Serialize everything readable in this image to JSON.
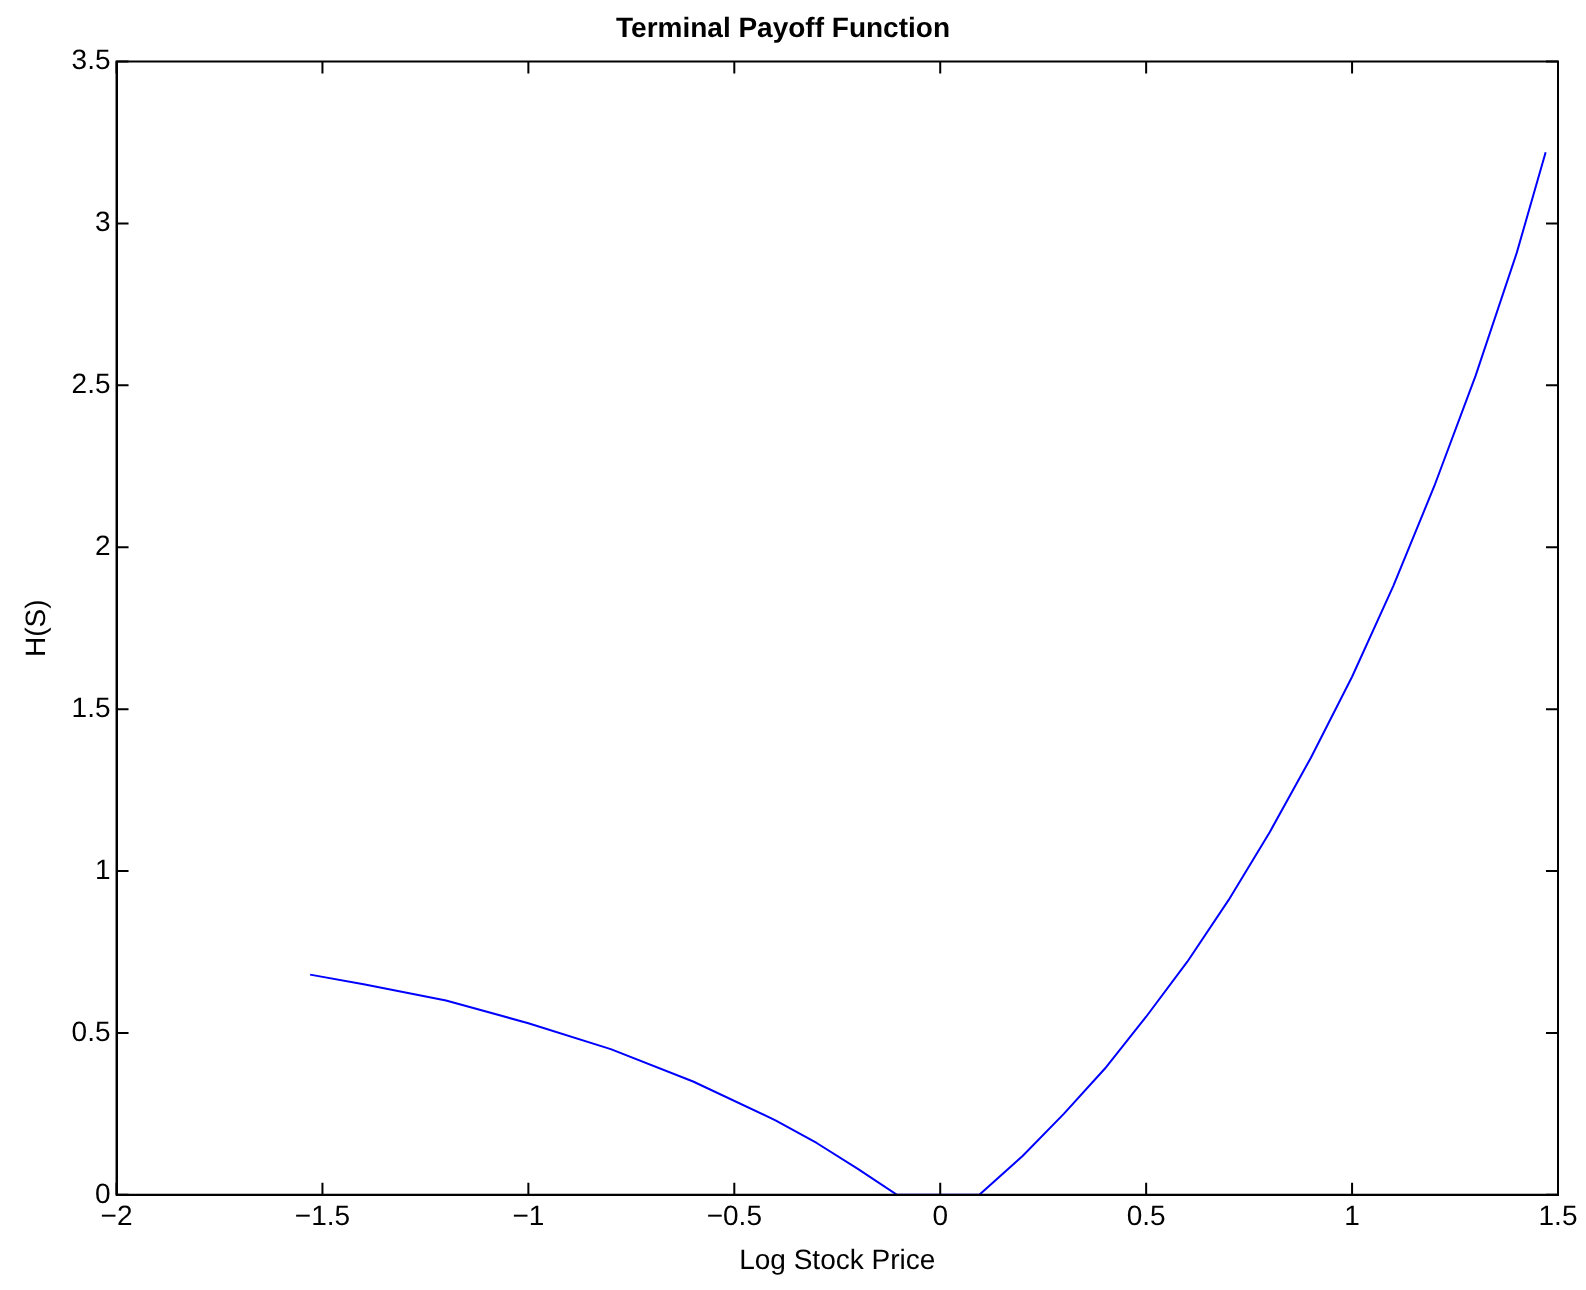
{
  "chart_data": {
    "type": "line",
    "title": "Terminal Payoff Function",
    "xlabel": "Log Stock Price",
    "ylabel": "H(S)",
    "x": [
      -1.53,
      -1.4,
      -1.2,
      -1.0,
      -0.8,
      -0.6,
      -0.4,
      -0.3,
      -0.2,
      -0.105,
      0.095,
      0.2,
      0.3,
      0.4,
      0.5,
      0.6,
      0.7,
      0.8,
      0.9,
      1.0,
      1.1,
      1.2,
      1.3,
      1.4,
      1.47
    ],
    "series": [
      {
        "color": "#0000ff",
        "values": [
          0.68,
          0.65,
          0.6,
          0.53,
          0.45,
          0.35,
          0.23,
          0.16,
          0.08,
          0,
          0,
          0.12,
          0.25,
          0.39,
          0.55,
          0.72,
          0.91,
          1.12,
          1.35,
          1.6,
          1.88,
          2.19,
          2.53,
          2.91,
          3.22
        ]
      }
    ],
    "xlim": [
      -2,
      1.5
    ],
    "xticks": [
      {
        "value": -2,
        "label": "−2"
      },
      {
        "value": -1.5,
        "label": "−1.5"
      },
      {
        "value": -1,
        "label": "−1"
      },
      {
        "value": -0.5,
        "label": "−0.5"
      },
      0,
      0.5,
      1,
      1.5
    ],
    "ylim": [
      0,
      3.5
    ],
    "yticks": [
      0,
      0.5,
      1,
      1.5,
      2,
      2.5,
      3,
      3.5
    ],
    "grid": false,
    "legend": false,
    "marker": "none",
    "line_style": "solid"
  }
}
